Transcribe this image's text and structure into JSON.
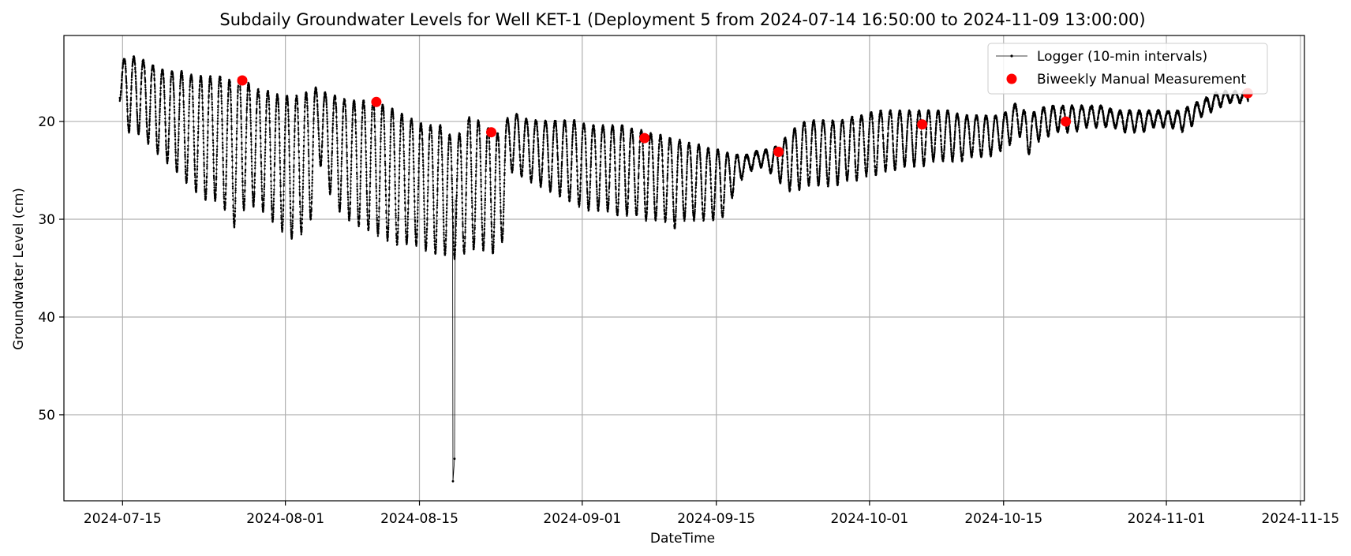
{
  "chart_data": {
    "type": "line",
    "title": "Subdaily Groundwater Levels for Well KET-1 (Deployment 5 from 2024-07-14 16:50:00 to 2024-11-09 13:00:00)",
    "xlabel": "DateTime",
    "ylabel": "Groundwater Level (cm)",
    "x_type": "datetime",
    "xlim": [
      "2024-07-08T21:00",
      "2024-11-15T10:00"
    ],
    "ylim": [
      58.8,
      11.2
    ],
    "y_inverted": true,
    "grid": true,
    "legend_position": "upper-right",
    "x_ticks": [
      {
        "date": "2024-07-15",
        "label": "2024-07-15"
      },
      {
        "date": "2024-08-01",
        "label": "2024-08-01"
      },
      {
        "date": "2024-08-15",
        "label": "2024-08-15"
      },
      {
        "date": "2024-09-01",
        "label": "2024-09-01"
      },
      {
        "date": "2024-09-15",
        "label": "2024-09-15"
      },
      {
        "date": "2024-10-01",
        "label": "2024-10-01"
      },
      {
        "date": "2024-10-15",
        "label": "2024-10-15"
      },
      {
        "date": "2024-11-01",
        "label": "2024-11-01"
      },
      {
        "date": "2024-11-15",
        "label": "2024-11-15"
      }
    ],
    "y_ticks": [
      {
        "value": 20,
        "label": "20"
      },
      {
        "value": 30,
        "label": "30"
      },
      {
        "value": 40,
        "label": "40"
      },
      {
        "value": 50,
        "label": "50"
      }
    ],
    "series": [
      {
        "name": "Logger (10-min intervals)",
        "kind": "line-with-markers",
        "color": "#000000",
        "interval": "10 min",
        "start": "2024-07-14T16:50",
        "end": "2024-11-09T13:00",
        "daily_cycle": [
          {
            "date": "2024-07-14",
            "min": 14.0,
            "max": 17.0
          },
          {
            "date": "2024-07-15",
            "min": 13.5,
            "max": 21.0
          },
          {
            "date": "2024-07-16",
            "min": 13.5,
            "max": 21.0
          },
          {
            "date": "2024-07-17",
            "min": 14.0,
            "max": 22.0
          },
          {
            "date": "2024-07-18",
            "min": 14.5,
            "max": 23.0
          },
          {
            "date": "2024-07-19",
            "min": 15.0,
            "max": 24.0
          },
          {
            "date": "2024-07-20",
            "min": 15.0,
            "max": 25.0
          },
          {
            "date": "2024-07-21",
            "min": 15.0,
            "max": 26.0
          },
          {
            "date": "2024-07-22",
            "min": 15.5,
            "max": 27.0
          },
          {
            "date": "2024-07-23",
            "min": 15.5,
            "max": 28.0
          },
          {
            "date": "2024-07-24",
            "min": 15.5,
            "max": 28.0
          },
          {
            "date": "2024-07-25",
            "min": 15.5,
            "max": 28.5
          },
          {
            "date": "2024-07-26",
            "min": 16.0,
            "max": 31.0
          },
          {
            "date": "2024-07-27",
            "min": 15.5,
            "max": 29.0
          },
          {
            "date": "2024-07-28",
            "min": 16.5,
            "max": 28.5
          },
          {
            "date": "2024-07-29",
            "min": 17.0,
            "max": 29.0
          },
          {
            "date": "2024-07-30",
            "min": 17.0,
            "max": 30.0
          },
          {
            "date": "2024-07-31",
            "min": 17.5,
            "max": 31.0
          },
          {
            "date": "2024-08-01",
            "min": 17.5,
            "max": 32.0
          },
          {
            "date": "2024-08-02",
            "min": 17.5,
            "max": 31.5
          },
          {
            "date": "2024-08-03",
            "min": 17.0,
            "max": 31.0
          },
          {
            "date": "2024-08-04",
            "min": 16.5,
            "max": 24.0
          },
          {
            "date": "2024-08-05",
            "min": 17.5,
            "max": 27.0
          },
          {
            "date": "2024-08-06",
            "min": 17.5,
            "max": 29.0
          },
          {
            "date": "2024-08-07",
            "min": 18.0,
            "max": 30.0
          },
          {
            "date": "2024-08-08",
            "min": 18.0,
            "max": 30.5
          },
          {
            "date": "2024-08-09",
            "min": 18.0,
            "max": 31.0
          },
          {
            "date": "2024-08-10",
            "min": 18.0,
            "max": 31.5
          },
          {
            "date": "2024-08-11",
            "min": 18.5,
            "max": 32.0
          },
          {
            "date": "2024-08-12",
            "min": 19.0,
            "max": 32.5
          },
          {
            "date": "2024-08-13",
            "min": 19.5,
            "max": 32.5
          },
          {
            "date": "2024-08-14",
            "min": 20.0,
            "max": 32.5
          },
          {
            "date": "2024-08-15",
            "min": 20.5,
            "max": 33.0
          },
          {
            "date": "2024-08-16",
            "min": 20.5,
            "max": 33.5
          },
          {
            "date": "2024-08-17",
            "min": 20.5,
            "max": 33.5
          },
          {
            "date": "2024-08-18",
            "min": 22.0,
            "max": 34.0
          },
          {
            "date": "2024-08-19",
            "min": 21.0,
            "max": 33.5
          },
          {
            "date": "2024-08-20",
            "min": 19.0,
            "max": 33.0
          },
          {
            "date": "2024-08-21",
            "min": 20.5,
            "max": 33.0
          },
          {
            "date": "2024-08-22",
            "min": 21.0,
            "max": 33.5
          },
          {
            "date": "2024-08-23",
            "min": 21.5,
            "max": 33.5
          },
          {
            "date": "2024-08-24",
            "min": 19.0,
            "max": 25.0
          },
          {
            "date": "2024-08-25",
            "min": 19.5,
            "max": 25.5
          },
          {
            "date": "2024-08-26",
            "min": 20.0,
            "max": 26.0
          },
          {
            "date": "2024-08-27",
            "min": 20.0,
            "max": 26.5
          },
          {
            "date": "2024-08-28",
            "min": 20.0,
            "max": 27.0
          },
          {
            "date": "2024-08-29",
            "min": 20.0,
            "max": 27.5
          },
          {
            "date": "2024-08-30",
            "min": 20.0,
            "max": 28.0
          },
          {
            "date": "2024-08-31",
            "min": 20.0,
            "max": 28.5
          },
          {
            "date": "2024-09-01",
            "min": 20.5,
            "max": 29.0
          },
          {
            "date": "2024-09-02",
            "min": 20.5,
            "max": 29.0
          },
          {
            "date": "2024-09-03",
            "min": 20.5,
            "max": 29.0
          },
          {
            "date": "2024-09-04",
            "min": 20.5,
            "max": 29.5
          },
          {
            "date": "2024-09-05",
            "min": 20.5,
            "max": 29.5
          },
          {
            "date": "2024-09-06",
            "min": 21.0,
            "max": 29.5
          },
          {
            "date": "2024-09-07",
            "min": 21.0,
            "max": 30.0
          },
          {
            "date": "2024-09-08",
            "min": 21.5,
            "max": 30.0
          },
          {
            "date": "2024-09-09",
            "min": 21.5,
            "max": 30.0
          },
          {
            "date": "2024-09-10",
            "min": 22.0,
            "max": 31.0
          },
          {
            "date": "2024-09-11",
            "min": 22.0,
            "max": 30.0
          },
          {
            "date": "2024-09-12",
            "min": 22.5,
            "max": 30.0
          },
          {
            "date": "2024-09-13",
            "min": 22.5,
            "max": 30.0
          },
          {
            "date": "2024-09-14",
            "min": 23.0,
            "max": 30.0
          },
          {
            "date": "2024-09-15",
            "min": 23.0,
            "max": 30.0
          },
          {
            "date": "2024-09-16",
            "min": 23.5,
            "max": 28.0
          },
          {
            "date": "2024-09-17",
            "min": 23.5,
            "max": 26.0
          },
          {
            "date": "2024-09-18",
            "min": 23.5,
            "max": 25.0
          },
          {
            "date": "2024-09-19",
            "min": 23.0,
            "max": 24.5
          },
          {
            "date": "2024-09-20",
            "min": 23.0,
            "max": 25.0
          },
          {
            "date": "2024-09-21",
            "min": 22.5,
            "max": 26.0
          },
          {
            "date": "2024-09-22",
            "min": 21.5,
            "max": 27.0
          },
          {
            "date": "2024-09-23",
            "min": 20.5,
            "max": 27.0
          },
          {
            "date": "2024-09-24",
            "min": 20.0,
            "max": 26.5
          },
          {
            "date": "2024-09-25",
            "min": 20.0,
            "max": 26.5
          },
          {
            "date": "2024-09-26",
            "min": 20.0,
            "max": 26.5
          },
          {
            "date": "2024-09-27",
            "min": 20.0,
            "max": 26.5
          },
          {
            "date": "2024-09-28",
            "min": 20.0,
            "max": 26.0
          },
          {
            "date": "2024-09-29",
            "min": 19.5,
            "max": 26.0
          },
          {
            "date": "2024-09-30",
            "min": 19.5,
            "max": 25.5
          },
          {
            "date": "2024-10-01",
            "min": 19.0,
            "max": 25.5
          },
          {
            "date": "2024-10-02",
            "min": 19.0,
            "max": 25.0
          },
          {
            "date": "2024-10-03",
            "min": 19.0,
            "max": 25.0
          },
          {
            "date": "2024-10-04",
            "min": 19.0,
            "max": 24.5
          },
          {
            "date": "2024-10-05",
            "min": 19.0,
            "max": 24.5
          },
          {
            "date": "2024-10-06",
            "min": 19.0,
            "max": 24.5
          },
          {
            "date": "2024-10-07",
            "min": 19.0,
            "max": 24.0
          },
          {
            "date": "2024-10-08",
            "min": 19.0,
            "max": 24.0
          },
          {
            "date": "2024-10-09",
            "min": 19.0,
            "max": 24.0
          },
          {
            "date": "2024-10-10",
            "min": 19.5,
            "max": 24.0
          },
          {
            "date": "2024-10-11",
            "min": 19.5,
            "max": 23.5
          },
          {
            "date": "2024-10-12",
            "min": 19.5,
            "max": 23.5
          },
          {
            "date": "2024-10-13",
            "min": 19.5,
            "max": 23.5
          },
          {
            "date": "2024-10-14",
            "min": 19.5,
            "max": 23.0
          },
          {
            "date": "2024-10-15",
            "min": 19.0,
            "max": 22.5
          },
          {
            "date": "2024-10-16",
            "min": 18.0,
            "max": 21.0
          },
          {
            "date": "2024-10-17",
            "min": 19.5,
            "max": 23.5
          },
          {
            "date": "2024-10-18",
            "min": 19.0,
            "max": 22.0
          },
          {
            "date": "2024-10-19",
            "min": 18.5,
            "max": 21.5
          },
          {
            "date": "2024-10-20",
            "min": 18.5,
            "max": 21.0
          },
          {
            "date": "2024-10-21",
            "min": 18.5,
            "max": 21.0
          },
          {
            "date": "2024-10-22",
            "min": 18.5,
            "max": 21.0
          },
          {
            "date": "2024-10-23",
            "min": 18.5,
            "max": 20.5
          },
          {
            "date": "2024-10-24",
            "min": 18.5,
            "max": 20.5
          },
          {
            "date": "2024-10-25",
            "min": 18.5,
            "max": 20.5
          },
          {
            "date": "2024-10-26",
            "min": 19.0,
            "max": 20.5
          },
          {
            "date": "2024-10-27",
            "min": 19.0,
            "max": 21.0
          },
          {
            "date": "2024-10-28",
            "min": 19.0,
            "max": 21.0
          },
          {
            "date": "2024-10-29",
            "min": 19.0,
            "max": 21.0
          },
          {
            "date": "2024-10-30",
            "min": 19.0,
            "max": 20.5
          },
          {
            "date": "2024-10-31",
            "min": 19.0,
            "max": 20.5
          },
          {
            "date": "2024-11-01",
            "min": 19.0,
            "max": 20.5
          },
          {
            "date": "2024-11-02",
            "min": 19.0,
            "max": 21.0
          },
          {
            "date": "2024-11-03",
            "min": 18.5,
            "max": 20.5
          },
          {
            "date": "2024-11-04",
            "min": 18.0,
            "max": 19.5
          },
          {
            "date": "2024-11-05",
            "min": 17.5,
            "max": 19.0
          },
          {
            "date": "2024-11-06",
            "min": 17.0,
            "max": 18.5
          },
          {
            "date": "2024-11-07",
            "min": 17.0,
            "max": 18.0
          },
          {
            "date": "2024-11-08",
            "min": 17.0,
            "max": 18.0
          },
          {
            "date": "2024-11-09",
            "min": 17.0,
            "max": 18.0
          }
        ],
        "anomalies": [
          {
            "datetime": "2024-08-18T12:00",
            "value": 56.8
          },
          {
            "datetime": "2024-08-18T16:00",
            "value": 54.5
          }
        ]
      },
      {
        "name": "Biweekly Manual Measurement",
        "kind": "scatter",
        "color": "#ff0000",
        "points": [
          {
            "x": "2024-07-27T12:00",
            "y": 15.8
          },
          {
            "x": "2024-08-10T12:00",
            "y": 18.0
          },
          {
            "x": "2024-08-22T12:00",
            "y": 21.1
          },
          {
            "x": "2024-09-07T12:00",
            "y": 21.7
          },
          {
            "x": "2024-09-21T12:00",
            "y": 23.1
          },
          {
            "x": "2024-10-06T12:00",
            "y": 20.3
          },
          {
            "x": "2024-10-21T12:00",
            "y": 20.0
          },
          {
            "x": "2024-11-09T12:00",
            "y": 17.1
          }
        ]
      }
    ]
  }
}
